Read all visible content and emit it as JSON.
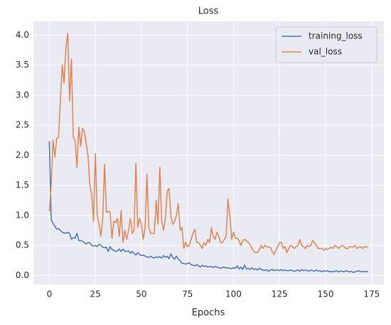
{
  "chart_data": {
    "type": "line",
    "title": "Loss",
    "xlabel": "Epochs",
    "x": [
      0,
      1,
      2,
      3,
      4,
      5,
      6,
      7,
      8,
      9,
      10,
      11,
      12,
      13,
      14,
      15,
      16,
      17,
      18,
      19,
      20,
      21,
      22,
      23,
      24,
      25,
      26,
      27,
      28,
      29,
      30,
      31,
      32,
      33,
      34,
      35,
      36,
      37,
      38,
      39,
      40,
      41,
      42,
      43,
      44,
      45,
      46,
      47,
      48,
      49,
      50,
      51,
      52,
      53,
      54,
      55,
      56,
      57,
      58,
      59,
      60,
      61,
      62,
      63,
      64,
      65,
      66,
      67,
      68,
      69,
      70,
      71,
      72,
      73,
      74,
      75,
      76,
      77,
      78,
      79,
      80,
      81,
      82,
      83,
      84,
      85,
      86,
      87,
      88,
      89,
      90,
      91,
      92,
      93,
      94,
      95,
      96,
      97,
      98,
      99,
      100,
      101,
      102,
      103,
      104,
      105,
      106,
      107,
      108,
      109,
      110,
      111,
      112,
      113,
      114,
      115,
      116,
      117,
      118,
      119,
      120,
      121,
      122,
      123,
      124,
      125,
      126,
      127,
      128,
      129,
      130,
      131,
      132,
      133,
      134,
      135,
      136,
      137,
      138,
      139,
      140,
      141,
      142,
      143,
      144,
      145,
      146,
      147,
      148,
      149,
      150,
      151,
      152,
      153,
      154,
      155,
      156,
      157,
      158,
      159,
      160,
      161,
      162,
      163,
      164,
      165,
      166,
      167,
      168,
      169,
      170,
      171,
      172,
      173
    ],
    "series": [
      {
        "name": "training_loss",
        "color": "#4c72b0",
        "values": [
          2.23,
          0.93,
          0.87,
          0.82,
          0.77,
          0.78,
          0.75,
          0.72,
          0.71,
          0.7,
          0.72,
          0.7,
          0.6,
          0.63,
          0.62,
          0.7,
          0.58,
          0.58,
          0.57,
          0.55,
          0.52,
          0.55,
          0.54,
          0.5,
          0.49,
          0.5,
          0.48,
          0.52,
          0.5,
          0.47,
          0.46,
          0.47,
          0.4,
          0.48,
          0.43,
          0.42,
          0.4,
          0.41,
          0.44,
          0.4,
          0.44,
          0.4,
          0.4,
          0.41,
          0.37,
          0.4,
          0.36,
          0.34,
          0.38,
          0.35,
          0.33,
          0.34,
          0.32,
          0.31,
          0.3,
          0.32,
          0.3,
          0.29,
          0.31,
          0.3,
          0.31,
          0.29,
          0.33,
          0.3,
          0.32,
          0.28,
          0.36,
          0.3,
          0.27,
          0.32,
          0.27,
          0.25,
          0.2,
          0.2,
          0.19,
          0.2,
          0.21,
          0.18,
          0.17,
          0.16,
          0.18,
          0.16,
          0.14,
          0.17,
          0.15,
          0.16,
          0.14,
          0.15,
          0.15,
          0.13,
          0.15,
          0.14,
          0.13,
          0.12,
          0.13,
          0.14,
          0.12,
          0.13,
          0.12,
          0.11,
          0.13,
          0.12,
          0.16,
          0.11,
          0.14,
          0.1,
          0.17,
          0.11,
          0.12,
          0.1,
          0.13,
          0.1,
          0.11,
          0.09,
          0.12,
          0.1,
          0.09,
          0.08,
          0.1,
          0.07,
          0.09,
          0.1,
          0.08,
          0.09,
          0.09,
          0.08,
          0.1,
          0.08,
          0.09,
          0.08,
          0.08,
          0.09,
          0.08,
          0.07,
          0.08,
          0.09,
          0.07,
          0.1,
          0.08,
          0.09,
          0.08,
          0.07,
          0.09,
          0.08,
          0.07,
          0.09,
          0.07,
          0.08,
          0.06,
          0.08,
          0.07,
          0.08,
          0.06,
          0.07,
          0.06,
          0.07,
          0.08,
          0.06,
          0.07,
          0.07,
          0.06,
          0.08,
          0.07,
          0.06,
          0.07,
          0.05,
          0.06,
          0.07,
          0.08,
          0.06,
          0.07,
          0.06,
          0.07,
          0.06
        ]
      },
      {
        "name": "val_loss",
        "color": "#dd8452",
        "values": [
          1.07,
          1.5,
          2.25,
          1.97,
          2.28,
          2.3,
          2.9,
          3.5,
          3.2,
          3.8,
          4.03,
          2.9,
          3.6,
          2.3,
          2.25,
          1.8,
          2.47,
          2.15,
          2.45,
          2.4,
          2.2,
          2.0,
          1.5,
          1.35,
          0.9,
          2.03,
          1.0,
          0.85,
          0.65,
          0.95,
          1.85,
          1.05,
          1.07,
          1.05,
          0.62,
          0.9,
          0.88,
          0.95,
          0.65,
          1.08,
          0.55,
          0.75,
          0.6,
          0.75,
          0.95,
          0.7,
          0.75,
          1.87,
          0.8,
          0.95,
          0.85,
          0.6,
          0.8,
          1.68,
          0.8,
          0.7,
          0.7,
          0.7,
          1.25,
          0.85,
          1.8,
          0.9,
          0.75,
          0.95,
          1.4,
          1.45,
          1.0,
          0.85,
          0.9,
          1.0,
          1.2,
          0.75,
          0.8,
          0.45,
          0.55,
          0.48,
          0.5,
          0.6,
          0.7,
          0.77,
          0.55,
          0.55,
          0.5,
          0.45,
          0.55,
          0.5,
          0.6,
          0.55,
          0.8,
          0.65,
          0.6,
          0.72,
          0.65,
          0.55,
          0.55,
          0.6,
          0.65,
          1.27,
          1.0,
          0.6,
          0.72,
          0.62,
          0.62,
          0.58,
          0.5,
          0.58,
          0.6,
          0.58,
          0.55,
          0.52,
          0.45,
          0.4,
          0.38,
          0.38,
          0.42,
          0.5,
          0.45,
          0.5,
          0.48,
          0.47,
          0.47,
          0.4,
          0.35,
          0.42,
          0.48,
          0.55,
          0.55,
          0.45,
          0.48,
          0.38,
          0.45,
          0.5,
          0.48,
          0.45,
          0.48,
          0.5,
          0.6,
          0.5,
          0.48,
          0.45,
          0.5,
          0.48,
          0.5,
          0.58,
          0.55,
          0.5,
          0.45,
          0.45,
          0.45,
          0.42,
          0.45,
          0.43,
          0.45,
          0.47,
          0.45,
          0.5,
          0.48,
          0.45,
          0.48,
          0.5,
          0.48,
          0.45,
          0.45,
          0.48,
          0.48,
          0.47,
          0.5,
          0.45,
          0.47,
          0.48,
          0.45,
          0.48,
          0.47,
          0.48
        ]
      }
    ],
    "xlim": [
      -8.65,
      181.65
    ],
    "xticks": [
      0,
      25,
      50,
      75,
      100,
      125,
      150,
      175
    ],
    "ylim": [
      -0.15,
      4.23
    ],
    "yticks": [
      {
        "value": 0,
        "label": "0.0"
      },
      0.5,
      {
        "value": 1,
        "label": "1.0"
      },
      1.5,
      {
        "value": 2,
        "label": "2.0"
      },
      2.5,
      {
        "value": 3,
        "label": "3.0"
      },
      3.5,
      {
        "value": 4,
        "label": "4.0"
      }
    ],
    "grid": true,
    "legend": "upper right"
  }
}
